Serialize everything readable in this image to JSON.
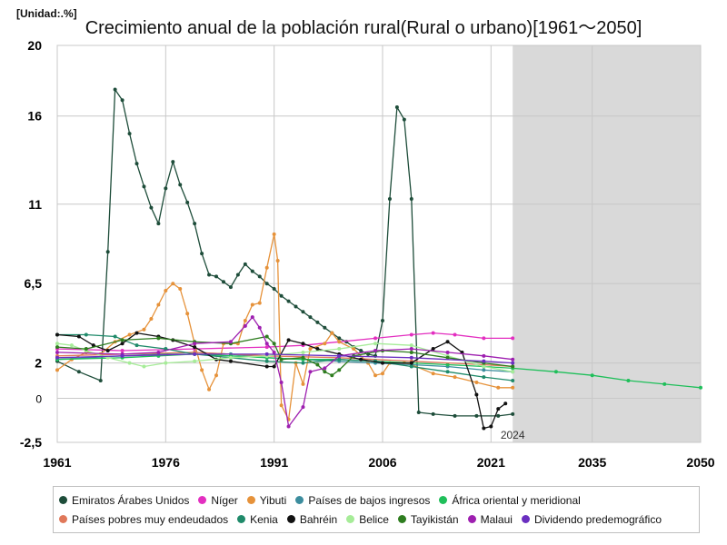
{
  "chart_data": {
    "type": "line",
    "title": "Crecimiento anual de la población rural(Rural o urbano)[1961～2050]",
    "unit_label": "[Unidad:.%]",
    "xlim": [
      1961,
      2050
    ],
    "ylim": [
      -2.5,
      20
    ],
    "x_ticks": [
      "1961",
      "1976",
      "1991",
      "2006",
      "2021",
      "2035",
      "2050"
    ],
    "y_ticks": [
      "-2,5",
      "0",
      "2",
      "6,5",
      "11",
      "16",
      "20"
    ],
    "projection_start": 2024,
    "projection_label": "2024",
    "grid": true,
    "legend_position": "bottom",
    "series": [
      {
        "name": "Emiratos Árabes Unidos",
        "color": "#1e4d3a",
        "points": [
          [
            1961,
            2.1
          ],
          [
            1964,
            1.5
          ],
          [
            1967,
            1.0
          ],
          [
            1968,
            8.3
          ],
          [
            1969,
            17.5
          ],
          [
            1970,
            16.9
          ],
          [
            1971,
            15.0
          ],
          [
            1972,
            13.3
          ],
          [
            1973,
            12.0
          ],
          [
            1974,
            10.8
          ],
          [
            1975,
            9.9
          ],
          [
            1976,
            11.9
          ],
          [
            1977,
            13.4
          ],
          [
            1978,
            12.1
          ],
          [
            1979,
            11.1
          ],
          [
            1980,
            9.9
          ],
          [
            1981,
            8.2
          ],
          [
            1982,
            7.0
          ],
          [
            1983,
            6.9
          ],
          [
            1984,
            6.6
          ],
          [
            1985,
            6.3
          ],
          [
            1986,
            7.0
          ],
          [
            1987,
            7.6
          ],
          [
            1988,
            7.2
          ],
          [
            1989,
            6.9
          ],
          [
            1990,
            6.5
          ],
          [
            1991,
            6.2
          ],
          [
            1992,
            5.8
          ],
          [
            1993,
            5.5
          ],
          [
            1994,
            5.2
          ],
          [
            1995,
            4.9
          ],
          [
            1996,
            4.6
          ],
          [
            1997,
            4.3
          ],
          [
            1998,
            4.0
          ],
          [
            1999,
            3.7
          ],
          [
            2000,
            3.4
          ],
          [
            2001,
            3.2
          ],
          [
            2002,
            2.9
          ],
          [
            2003,
            2.7
          ],
          [
            2004,
            2.5
          ],
          [
            2005,
            2.4
          ],
          [
            2006,
            4.4
          ],
          [
            2007,
            11.3
          ],
          [
            2008,
            16.5
          ],
          [
            2009,
            15.8
          ],
          [
            2010,
            11.3
          ],
          [
            2011,
            -0.8
          ],
          [
            2013,
            -0.9
          ],
          [
            2016,
            -1.0
          ],
          [
            2019,
            -1.0
          ],
          [
            2022,
            -1.0
          ],
          [
            2024,
            -0.9
          ]
        ]
      },
      {
        "name": "Níger",
        "color": "#e32fc0",
        "points": [
          [
            1961,
            2.8
          ],
          [
            1970,
            2.7
          ],
          [
            1980,
            2.8
          ],
          [
            1990,
            2.9
          ],
          [
            1995,
            3.0
          ],
          [
            2000,
            3.2
          ],
          [
            2005,
            3.4
          ],
          [
            2010,
            3.6
          ],
          [
            2013,
            3.7
          ],
          [
            2016,
            3.6
          ],
          [
            2020,
            3.4
          ],
          [
            2024,
            3.4
          ]
        ]
      },
      {
        "name": "Yibuti",
        "color": "#e6923a",
        "points": [
          [
            1961,
            1.6
          ],
          [
            1963,
            2.2
          ],
          [
            1965,
            2.6
          ],
          [
            1967,
            2.5
          ],
          [
            1969,
            3.2
          ],
          [
            1971,
            3.6
          ],
          [
            1973,
            3.9
          ],
          [
            1974,
            4.5
          ],
          [
            1975,
            5.3
          ],
          [
            1976,
            6.1
          ],
          [
            1977,
            6.5
          ],
          [
            1978,
            6.2
          ],
          [
            1979,
            4.8
          ],
          [
            1980,
            3.1
          ],
          [
            1981,
            1.6
          ],
          [
            1982,
            0.5
          ],
          [
            1983,
            1.3
          ],
          [
            1984,
            3.1
          ],
          [
            1986,
            3.1
          ],
          [
            1987,
            4.4
          ],
          [
            1988,
            5.3
          ],
          [
            1989,
            5.4
          ],
          [
            1990,
            7.4
          ],
          [
            1991,
            9.3
          ],
          [
            1991.5,
            7.8
          ],
          [
            1992,
            -0.4
          ],
          [
            1993,
            -1.2
          ],
          [
            1994,
            2.0
          ],
          [
            1995,
            0.8
          ],
          [
            1996,
            2.8
          ],
          [
            1998,
            3.1
          ],
          [
            1999,
            3.7
          ],
          [
            2000,
            3.2
          ],
          [
            2002,
            2.8
          ],
          [
            2004,
            2.0
          ],
          [
            2005,
            1.3
          ],
          [
            2006,
            1.4
          ],
          [
            2007,
            2.0
          ],
          [
            2009,
            2.0
          ],
          [
            2010,
            1.9
          ],
          [
            2013,
            1.4
          ],
          [
            2016,
            1.2
          ],
          [
            2019,
            0.9
          ],
          [
            2022,
            0.6
          ],
          [
            2024,
            0.6
          ]
        ]
      },
      {
        "name": "Países de bajos ingresos",
        "color": "#3c8d9e",
        "points": [
          [
            1961,
            2.2
          ],
          [
            1970,
            2.4
          ],
          [
            1975,
            2.5
          ],
          [
            1980,
            2.6
          ],
          [
            1985,
            2.5
          ],
          [
            1990,
            2.3
          ],
          [
            1995,
            2.2
          ],
          [
            2000,
            2.1
          ],
          [
            2005,
            2.0
          ],
          [
            2010,
            1.9
          ],
          [
            2015,
            1.8
          ],
          [
            2020,
            1.6
          ],
          [
            2024,
            1.5
          ]
        ]
      },
      {
        "name": "África oriental y meridional",
        "color": "#1fbf5a",
        "points": [
          [
            1961,
            2.2
          ],
          [
            1970,
            2.3
          ],
          [
            1975,
            2.4
          ],
          [
            1980,
            2.5
          ],
          [
            1985,
            2.4
          ],
          [
            1990,
            2.3
          ],
          [
            1995,
            2.2
          ],
          [
            2000,
            2.2
          ],
          [
            2005,
            2.1
          ],
          [
            2010,
            2.0
          ],
          [
            2015,
            1.9
          ],
          [
            2020,
            1.8
          ],
          [
            2024,
            1.7
          ],
          [
            2030,
            1.5
          ],
          [
            2035,
            1.3
          ],
          [
            2040,
            1.0
          ],
          [
            2045,
            0.8
          ],
          [
            2050,
            0.6
          ]
        ]
      },
      {
        "name": "Países pobres muy endeudados",
        "color": "#e0785a",
        "points": [
          [
            1961,
            2.4
          ],
          [
            1970,
            2.5
          ],
          [
            1980,
            2.6
          ],
          [
            1990,
            2.4
          ],
          [
            2000,
            2.3
          ],
          [
            2010,
            2.1
          ],
          [
            2020,
            1.9
          ],
          [
            2024,
            1.8
          ]
        ]
      },
      {
        "name": "Kenia",
        "color": "#1f8a6a",
        "points": [
          [
            1961,
            3.6
          ],
          [
            1965,
            3.6
          ],
          [
            1969,
            3.5
          ],
          [
            1972,
            3.0
          ],
          [
            1976,
            2.8
          ],
          [
            1980,
            2.5
          ],
          [
            1985,
            2.3
          ],
          [
            1990,
            2.1
          ],
          [
            1995,
            2.0
          ],
          [
            2000,
            2.2
          ],
          [
            2005,
            2.1
          ],
          [
            2010,
            1.8
          ],
          [
            2015,
            1.5
          ],
          [
            2020,
            1.2
          ],
          [
            2024,
            1.0
          ]
        ]
      },
      {
        "name": "Bahréin",
        "color": "#111111",
        "points": [
          [
            1961,
            3.6
          ],
          [
            1964,
            3.5
          ],
          [
            1966,
            3.0
          ],
          [
            1968,
            2.7
          ],
          [
            1970,
            3.1
          ],
          [
            1972,
            3.7
          ],
          [
            1975,
            3.5
          ],
          [
            1977,
            3.3
          ],
          [
            1980,
            2.9
          ],
          [
            1983,
            2.2
          ],
          [
            1985,
            2.1
          ],
          [
            1990,
            1.8
          ],
          [
            1991,
            1.8
          ],
          [
            1993,
            3.3
          ],
          [
            1995,
            3.1
          ],
          [
            1997,
            2.8
          ],
          [
            2000,
            2.5
          ],
          [
            2003,
            2.2
          ],
          [
            2006,
            2.0
          ],
          [
            2010,
            2.0
          ],
          [
            2013,
            2.8
          ],
          [
            2015,
            3.2
          ],
          [
            2017,
            2.6
          ],
          [
            2019,
            0.2
          ],
          [
            2020,
            -1.7
          ],
          [
            2021,
            -1.6
          ],
          [
            2022,
            -0.6
          ],
          [
            2023,
            -0.3
          ]
        ]
      },
      {
        "name": "Belice",
        "color": "#a6ec98",
        "points": [
          [
            1961,
            3.1
          ],
          [
            1963,
            3.0
          ],
          [
            1965,
            2.7
          ],
          [
            1968,
            2.3
          ],
          [
            1971,
            2.0
          ],
          [
            1973,
            1.8
          ],
          [
            1976,
            2.0
          ],
          [
            1980,
            2.1
          ],
          [
            1985,
            2.3
          ],
          [
            1990,
            2.4
          ],
          [
            1995,
            2.6
          ],
          [
            2000,
            2.8
          ],
          [
            2005,
            3.1
          ],
          [
            2010,
            3.0
          ],
          [
            2015,
            2.4
          ],
          [
            2020,
            1.8
          ],
          [
            2024,
            1.5
          ]
        ]
      },
      {
        "name": "Tayikistán",
        "color": "#2e7d1f",
        "points": [
          [
            1961,
            2.9
          ],
          [
            1965,
            2.8
          ],
          [
            1970,
            3.3
          ],
          [
            1975,
            3.4
          ],
          [
            1980,
            3.2
          ],
          [
            1985,
            3.1
          ],
          [
            1990,
            3.5
          ],
          [
            1991,
            3.1
          ],
          [
            1992,
            2.2
          ],
          [
            1995,
            2.3
          ],
          [
            1997,
            1.9
          ],
          [
            1998,
            1.5
          ],
          [
            1999,
            1.3
          ],
          [
            2000,
            1.6
          ],
          [
            2002,
            2.4
          ],
          [
            2006,
            2.7
          ],
          [
            2010,
            2.6
          ],
          [
            2015,
            2.3
          ],
          [
            2020,
            2.0
          ],
          [
            2024,
            1.8
          ]
        ]
      },
      {
        "name": "Malaui",
        "color": "#9e1fb0",
        "points": [
          [
            1961,
            2.6
          ],
          [
            1970,
            2.5
          ],
          [
            1975,
            2.6
          ],
          [
            1980,
            3.1
          ],
          [
            1985,
            3.2
          ],
          [
            1987,
            4.1
          ],
          [
            1988,
            4.6
          ],
          [
            1989,
            4.0
          ],
          [
            1990,
            3.1
          ],
          [
            1991,
            2.6
          ],
          [
            1992,
            0.9
          ],
          [
            1993,
            -1.6
          ],
          [
            1995,
            -0.5
          ],
          [
            1996,
            1.5
          ],
          [
            1998,
            1.7
          ],
          [
            2000,
            2.4
          ],
          [
            2005,
            2.7
          ],
          [
            2010,
            2.8
          ],
          [
            2015,
            2.6
          ],
          [
            2020,
            2.4
          ],
          [
            2024,
            2.2
          ]
        ]
      },
      {
        "name": "Dividendo predemográfico",
        "color": "#6a2fc0",
        "points": [
          [
            1961,
            2.3
          ],
          [
            1970,
            2.4
          ],
          [
            1980,
            2.5
          ],
          [
            1990,
            2.5
          ],
          [
            2000,
            2.4
          ],
          [
            2010,
            2.3
          ],
          [
            2020,
            2.1
          ],
          [
            2024,
            2.0
          ]
        ]
      }
    ]
  }
}
